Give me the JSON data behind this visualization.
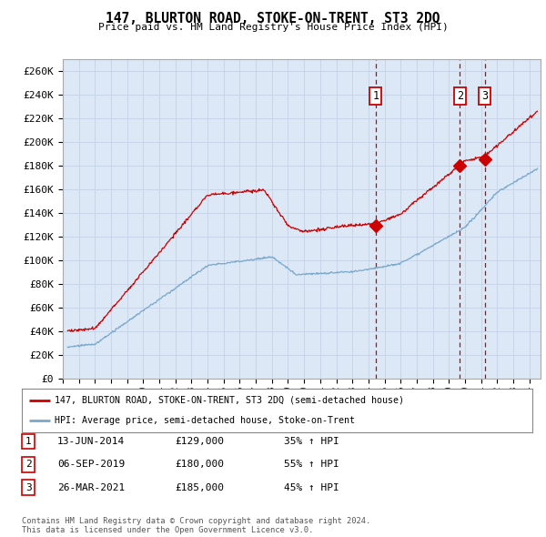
{
  "title": "147, BLURTON ROAD, STOKE-ON-TRENT, ST3 2DQ",
  "subtitle": "Price paid vs. HM Land Registry's House Price Index (HPI)",
  "ylim": [
    0,
    270000
  ],
  "xlim_start": 1995.3,
  "xlim_end": 2024.7,
  "grid_color": "#c8d4e8",
  "plot_bg_color": "#dce8f5",
  "red_line_color": "#cc0000",
  "blue_line_color": "#7aa8cc",
  "transactions": [
    {
      "year": 2014.45,
      "price": 129000,
      "label": "1"
    },
    {
      "year": 2019.68,
      "price": 180000,
      "label": "2"
    },
    {
      "year": 2021.23,
      "price": 185000,
      "label": "3"
    }
  ],
  "transaction_table": [
    {
      "num": "1",
      "date": "13-JUN-2014",
      "price": "£129,000",
      "pct": "35% ↑ HPI"
    },
    {
      "num": "2",
      "date": "06-SEP-2019",
      "price": "£180,000",
      "pct": "55% ↑ HPI"
    },
    {
      "num": "3",
      "date": "26-MAR-2021",
      "price": "£185,000",
      "pct": "45% ↑ HPI"
    }
  ],
  "legend_red": "147, BLURTON ROAD, STOKE-ON-TRENT, ST3 2DQ (semi-detached house)",
  "legend_blue": "HPI: Average price, semi-detached house, Stoke-on-Trent",
  "footnote": "Contains HM Land Registry data © Crown copyright and database right 2024.\nThis data is licensed under the Open Government Licence v3.0.",
  "dashed_vline_color": "#cc0000"
}
